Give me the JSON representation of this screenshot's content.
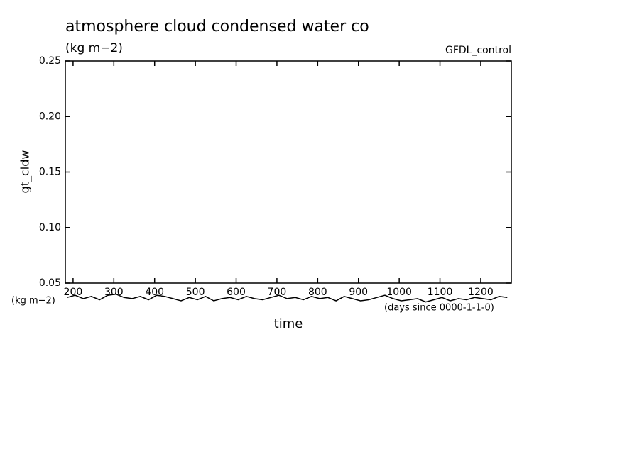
{
  "chart_data": {
    "type": "line",
    "title": "atmosphere cloud condensed water co",
    "subtitle": "(kg m−2)",
    "source_label": "GFDL_control",
    "y_label": "gt_cldw",
    "x_label": "time",
    "y_units": "(kg m−2)",
    "x_units": "(days since 0000-1-1-0)",
    "xlim": [
      181,
      1275
    ],
    "ylim": [
      0.05,
      0.25
    ],
    "xticks": [
      200,
      300,
      400,
      500,
      600,
      700,
      800,
      900,
      1000,
      1100,
      1200
    ],
    "yticks": [
      0.05,
      {
        "value": 0.1,
        "label": "0.10"
      },
      0.15,
      {
        "value": 0.2,
        "label": "0.20"
      },
      0.25
    ],
    "color": "#000000",
    "x": [
      185,
      205,
      225,
      245,
      265,
      285,
      305,
      325,
      345,
      365,
      385,
      405,
      425,
      445,
      465,
      485,
      505,
      525,
      545,
      565,
      585,
      605,
      625,
      645,
      665,
      685,
      705,
      725,
      745,
      765,
      785,
      805,
      825,
      845,
      865,
      885,
      905,
      925,
      945,
      965,
      985,
      1005,
      1025,
      1045,
      1065,
      1085,
      1105,
      1125,
      1145,
      1165,
      1185,
      1205,
      1225,
      1245,
      1265
    ],
    "values": [
      0.037,
      0.039,
      0.036,
      0.038,
      0.035,
      0.039,
      0.04,
      0.037,
      0.036,
      0.038,
      0.035,
      0.039,
      0.038,
      0.036,
      0.034,
      0.037,
      0.035,
      0.038,
      0.034,
      0.036,
      0.037,
      0.035,
      0.038,
      0.036,
      0.035,
      0.037,
      0.039,
      0.036,
      0.037,
      0.035,
      0.038,
      0.036,
      0.037,
      0.034,
      0.038,
      0.036,
      0.034,
      0.035,
      0.037,
      0.039,
      0.036,
      0.034,
      0.035,
      0.036,
      0.033,
      0.035,
      0.037,
      0.034,
      0.036,
      0.035,
      0.037,
      0.036,
      0.035,
      0.038,
      0.037
    ]
  }
}
